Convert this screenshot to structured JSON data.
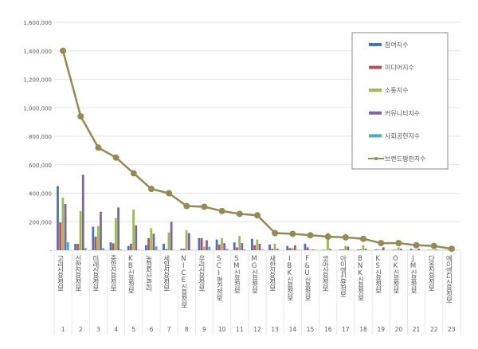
{
  "chart_data": {
    "type": "bar",
    "title": "",
    "xlabel": "",
    "ylabel": "",
    "ylim": [
      0,
      1600000
    ],
    "yticks": [
      0,
      200000,
      400000,
      600000,
      800000,
      1000000,
      1200000,
      1400000,
      1600000
    ],
    "ytick_labels": [
      "-",
      "200,000",
      "400,000",
      "600,000",
      "800,000",
      "1,000,000",
      "1,200,000",
      "1,400,000",
      "1,600,000"
    ],
    "grid": true,
    "legend_position": "top-right",
    "categories": [
      "고려신용정보",
      "신한신용정보",
      "미래신용정보",
      "중앙신용정보",
      "KB신용정보",
      "농협자산관리",
      "세일신용정보",
      "NICE신용정보",
      "우리신용정보",
      "SCI평가정보",
      "SM신용정보",
      "MG신용정보",
      "새한신용정보",
      "IBK신용정보",
      "F&U신용정보",
      "코아신용정보",
      "아이엠신용정보",
      "BNK신용정보",
      "KS신용정보",
      "OK신용정보",
      "JM신용정보",
      "다올신용정보",
      "에이엔디신용정보"
    ],
    "ranks": [
      "1",
      "2",
      "3",
      "4",
      "5",
      "6",
      "7",
      "8",
      "9",
      "10",
      "11",
      "12",
      "13",
      "14",
      "15",
      "16",
      "17",
      "18",
      "19",
      "20",
      "21",
      "22",
      "23"
    ],
    "series": [
      {
        "name": "참여지수",
        "type": "bar",
        "color": "#4472C4",
        "values": [
          450000,
          45000,
          165000,
          55000,
          30000,
          35000,
          45000,
          10000,
          85000,
          75000,
          55000,
          80000,
          40000,
          30000,
          45000,
          3000,
          5000,
          5000,
          5000,
          3000,
          10000,
          3000,
          1000
        ]
      },
      {
        "name": "미디어지수",
        "type": "bar",
        "color": "#C0504D",
        "values": [
          195000,
          45000,
          95000,
          48000,
          45000,
          85000,
          8000,
          10000,
          85000,
          40000,
          20000,
          35000,
          10000,
          15000,
          20000,
          2000,
          5000,
          5000,
          3000,
          3000,
          3000,
          2000,
          1000
        ]
      },
      {
        "name": "소통지수",
        "type": "bar",
        "color": "#9BBB59",
        "values": [
          370000,
          275000,
          170000,
          225000,
          285000,
          155000,
          125000,
          140000,
          25000,
          85000,
          100000,
          75000,
          45000,
          15000,
          5000,
          120000,
          30000,
          35000,
          5000,
          20000,
          3000,
          3000,
          1000
        ]
      },
      {
        "name": "커뮤니티지수",
        "type": "bar",
        "color": "#8064A2",
        "values": [
          325000,
          530000,
          270000,
          300000,
          175000,
          115000,
          200000,
          120000,
          70000,
          50000,
          50000,
          45000,
          10000,
          35000,
          5000,
          10000,
          25000,
          10000,
          20000,
          10000,
          10000,
          5000,
          2000
        ]
      },
      {
        "name": "사회공헌지수",
        "type": "bar",
        "color": "#4BACC6",
        "values": [
          57000,
          15000,
          15000,
          5000,
          3000,
          27000,
          2000,
          2000,
          25000,
          10000,
          5000,
          5000,
          2000,
          2000,
          2000,
          1000,
          1000,
          1000,
          1000,
          1000,
          1000,
          1000,
          500
        ]
      },
      {
        "name": "브랜드평판지수",
        "type": "line",
        "color": "#948A54",
        "values": [
          1400000,
          940000,
          720000,
          650000,
          540000,
          430000,
          400000,
          310000,
          305000,
          275000,
          255000,
          245000,
          120000,
          115000,
          105000,
          95000,
          90000,
          80000,
          50000,
          50000,
          35000,
          30000,
          10000
        ]
      }
    ]
  }
}
